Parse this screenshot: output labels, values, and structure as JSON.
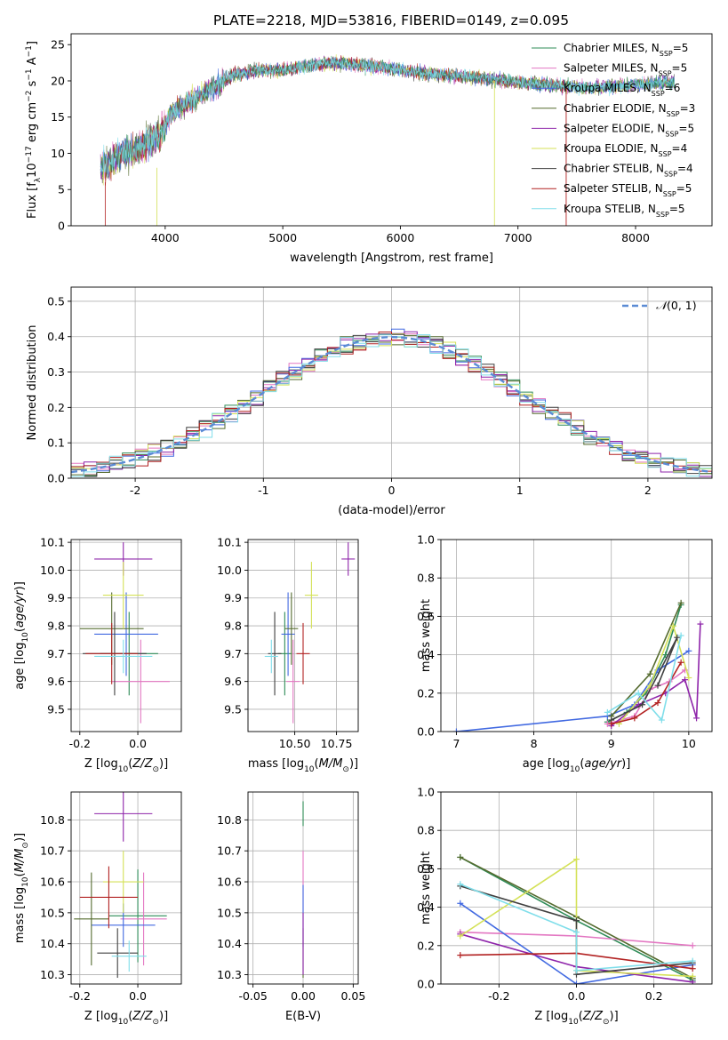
{
  "figure_title": "PLATE=2218, MJD=53816, FIBERID=0149, z=0.095",
  "series": [
    {
      "name": "Chabrier MILES, N",
      "nssp": "=5",
      "color": "#2e8b57"
    },
    {
      "name": "Salpeter MILES, N",
      "nssp": "=5",
      "color": "#e377c2"
    },
    {
      "name": "Kroupa MILES, N",
      "nssp": "=6",
      "color": "#4169e1"
    },
    {
      "name": "Chabrier ELODIE, N",
      "nssp": "=3",
      "color": "#556b2f"
    },
    {
      "name": "Salpeter ELODIE, N",
      "nssp": "=5",
      "color": "#8e24aa"
    },
    {
      "name": "Kroupa ELODIE, N",
      "nssp": "=4",
      "color": "#d4e157"
    },
    {
      "name": "Chabrier STELIB, N",
      "nssp": "=4",
      "color": "#404040"
    },
    {
      "name": "Salpeter STELIB, N",
      "nssp": "=5",
      "color": "#b22222"
    },
    {
      "name": "Kroupa STELIB, N",
      "nssp": "=5",
      "color": "#80deea"
    }
  ],
  "legend_sub": "SSP",
  "chart_data": [
    {
      "id": "spectrum",
      "type": "line",
      "xlabel": "wavelength [Angstrom, rest frame]",
      "ylabel": "Flux [f",
      "ylabel_rest": "10",
      "ylabel_exp": "−17",
      "ylabel_units": " erg cm",
      "xlim": [
        3200,
        8650
      ],
      "ylim": [
        0,
        26.5
      ],
      "xticks": [
        4000,
        5000,
        6000,
        7000,
        8000
      ],
      "yticks": [
        0,
        5,
        10,
        15,
        20,
        25
      ],
      "continuum": [
        [
          3450,
          8
        ],
        [
          3550,
          9
        ],
        [
          3650,
          10
        ],
        [
          3750,
          10.5
        ],
        [
          3850,
          11.5
        ],
        [
          3950,
          12.5
        ],
        [
          4050,
          15.5
        ],
        [
          4200,
          17
        ],
        [
          4400,
          19
        ],
        [
          4600,
          21
        ],
        [
          4800,
          21.5
        ],
        [
          5000,
          21.5
        ],
        [
          5200,
          22
        ],
        [
          5400,
          22.5
        ],
        [
          5600,
          22.3
        ],
        [
          5800,
          22
        ],
        [
          6000,
          21.5
        ],
        [
          6200,
          21
        ],
        [
          6400,
          20.8
        ],
        [
          6600,
          20.5
        ],
        [
          6800,
          20.2
        ],
        [
          7000,
          19.8
        ],
        [
          7200,
          19.5
        ],
        [
          7400,
          19.3
        ],
        [
          7600,
          19
        ],
        [
          7800,
          19.2
        ],
        [
          8000,
          19.5
        ],
        [
          8300,
          19.8
        ]
      ]
    },
    {
      "id": "residuals",
      "type": "histogram",
      "xlabel": "(data-model)/error",
      "ylabel": "Normed distribution",
      "xlim": [
        -2.5,
        2.5
      ],
      "ylim": [
        0,
        0.54
      ],
      "xticks": [
        -2,
        -1,
        0,
        1,
        2
      ],
      "yticks": [
        0.0,
        0.1,
        0.2,
        0.3,
        0.4,
        0.5
      ],
      "reference_label": "(0, 1)",
      "reference_symbol": "𝒩",
      "bin_width": 0.1
    },
    {
      "id": "age_vs_Z",
      "type": "scatter",
      "xlabel": "Z [log",
      "xlabel_sub": "10",
      "xlabel_rest": "(Z/Z",
      "ylabel": "age  [log",
      "ylabel_sub": "10",
      "ylabel_rest": "(age/yr)]",
      "xlim": [
        -0.23,
        0.15
      ],
      "ylim": [
        9.42,
        10.11
      ],
      "xticks": [
        -0.2,
        0.0
      ],
      "yticks": [
        9.5,
        9.6,
        9.7,
        9.8,
        9.9,
        10.0,
        10.1
      ],
      "points": [
        [
          -0.03,
          9.7,
          0.1,
          0.15
        ],
        [
          0.01,
          9.6,
          0.1,
          0.15
        ],
        [
          -0.04,
          9.77,
          0.11,
          0.15
        ],
        [
          -0.09,
          9.79,
          0.11,
          0.13
        ],
        [
          -0.05,
          10.04,
          0.1,
          0.06
        ],
        [
          -0.05,
          9.91,
          0.07,
          0.12
        ],
        [
          -0.08,
          9.7,
          0.11,
          0.15
        ],
        [
          -0.09,
          9.7,
          0.09,
          0.11
        ],
        [
          -0.05,
          9.69,
          0.1,
          0.06
        ]
      ]
    },
    {
      "id": "age_vs_mass",
      "type": "scatter",
      "xlabel": "mass [log",
      "xlabel_sub": "10",
      "xlabel_rest": "(M/M",
      "xlim": [
        10.22,
        10.88
      ],
      "ylim": [
        9.42,
        10.11
      ],
      "xticks": [
        10.5,
        10.75
      ],
      "yticks": [
        9.5,
        9.6,
        9.7,
        9.8,
        9.9,
        10.0,
        10.1
      ],
      "points": [
        [
          10.44,
          9.7,
          0.04,
          0.15
        ],
        [
          10.49,
          9.6,
          0.04,
          0.15
        ],
        [
          10.46,
          9.77,
          0.04,
          0.15
        ],
        [
          10.48,
          9.79,
          0.04,
          0.13
        ],
        [
          10.82,
          10.04,
          0.04,
          0.06
        ],
        [
          10.6,
          9.91,
          0.04,
          0.12
        ],
        [
          10.38,
          9.7,
          0.04,
          0.15
        ],
        [
          10.55,
          9.7,
          0.04,
          0.11
        ],
        [
          10.36,
          9.69,
          0.04,
          0.06
        ]
      ]
    },
    {
      "id": "weight_vs_age",
      "type": "line",
      "xlabel": "age  [log",
      "xlabel_sub": "10",
      "xlabel_rest": "(age/yr)]",
      "ylabel": "mass weight",
      "xlim": [
        6.8,
        10.3
      ],
      "ylim": [
        0,
        1
      ],
      "xticks": [
        7,
        8,
        9,
        10
      ],
      "yticks": [
        0.0,
        0.2,
        0.4,
        0.6,
        0.8,
        1.0
      ],
      "lines": [
        [
          [
            8.95,
            0.05
          ],
          [
            9.2,
            0.1
          ],
          [
            9.45,
            0.2
          ],
          [
            9.7,
            0.4
          ],
          [
            9.9,
            0.66
          ]
        ],
        [
          [
            8.95,
            0.04
          ],
          [
            9.3,
            0.08
          ],
          [
            9.5,
            0.22
          ],
          [
            9.75,
            0.26
          ],
          [
            9.95,
            0.32
          ]
        ],
        [
          [
            7.0,
            0.0
          ],
          [
            8.95,
            0.08
          ],
          [
            9.3,
            0.14
          ],
          [
            9.6,
            0.32
          ],
          [
            10.0,
            0.42
          ]
        ],
        [
          [
            9.0,
            0.08
          ],
          [
            9.5,
            0.3
          ],
          [
            9.9,
            0.67
          ]
        ],
        [
          [
            9.0,
            0.03
          ],
          [
            9.35,
            0.14
          ],
          [
            9.7,
            0.2
          ],
          [
            9.95,
            0.27
          ],
          [
            10.1,
            0.07
          ],
          [
            10.15,
            0.56
          ]
        ],
        [
          [
            9.1,
            0.04
          ],
          [
            9.5,
            0.24
          ],
          [
            9.8,
            0.55
          ],
          [
            10.0,
            0.28
          ]
        ],
        [
          [
            9.0,
            0.06
          ],
          [
            9.4,
            0.14
          ],
          [
            9.85,
            0.49
          ],
          [
            9.6,
            0.24
          ]
        ],
        [
          [
            9.0,
            0.04
          ],
          [
            9.3,
            0.07
          ],
          [
            9.6,
            0.15
          ],
          [
            9.9,
            0.36
          ]
        ],
        [
          [
            8.95,
            0.1
          ],
          [
            9.35,
            0.2
          ],
          [
            9.65,
            0.06
          ],
          [
            9.9,
            0.5
          ]
        ]
      ]
    },
    {
      "id": "mass_vs_Z",
      "type": "scatter",
      "xlabel": "Z [log",
      "xlabel_sub": "10",
      "xlabel_rest": "(Z/Z",
      "ylabel": "mass [log",
      "ylabel_sub": "10",
      "ylabel_rest": "(M/M",
      "xlim": [
        -0.23,
        0.15
      ],
      "ylim": [
        10.27,
        10.89
      ],
      "xticks": [
        -0.2,
        0.0
      ],
      "yticks": [
        10.3,
        10.4,
        10.5,
        10.6,
        10.7,
        10.8
      ],
      "points": [
        [
          0.0,
          10.49,
          0.1,
          0.15
        ],
        [
          0.02,
          10.48,
          0.08,
          0.15
        ],
        [
          -0.05,
          10.46,
          0.11,
          0.07
        ],
        [
          -0.16,
          10.48,
          0.06,
          0.15
        ],
        [
          -0.05,
          10.82,
          0.1,
          0.09
        ],
        [
          -0.05,
          10.6,
          0.07,
          0.1
        ],
        [
          -0.07,
          10.37,
          0.07,
          0.08
        ],
        [
          -0.1,
          10.55,
          0.1,
          0.1
        ],
        [
          -0.03,
          10.36,
          0.06,
          0.05
        ]
      ]
    },
    {
      "id": "mass_vs_ebv",
      "type": "scatter",
      "xlabel": "E(B-V)",
      "xlim": [
        -0.055,
        0.055
      ],
      "ylim": [
        10.27,
        10.89
      ],
      "xticks": [
        -0.05,
        0.0,
        0.05
      ],
      "yticks": [
        10.3,
        10.4,
        10.5,
        10.6,
        10.7,
        10.8
      ],
      "points": [
        [
          0,
          10.82,
          0,
          0.04
        ],
        [
          0,
          10.6,
          0,
          0.1
        ],
        [
          0,
          10.49,
          0,
          0.1
        ],
        [
          0,
          10.37,
          0,
          0.08
        ],
        [
          0,
          10.4,
          0,
          0.1
        ]
      ]
    },
    {
      "id": "weight_vs_Z",
      "type": "line",
      "xlabel": "Z [log",
      "xlabel_sub": "10",
      "xlabel_rest": "(Z/Z",
      "ylabel": "mass weight",
      "xlim": [
        -0.35,
        0.35
      ],
      "ylim": [
        0,
        1
      ],
      "xticks": [
        -0.2,
        0.0,
        0.2
      ],
      "yticks": [
        0.0,
        0.2,
        0.4,
        0.6,
        0.8,
        1.0
      ],
      "lines": [
        [
          [
            -0.3,
            0.66
          ],
          [
            0.0,
            0.33
          ],
          [
            0.3,
            0.02
          ]
        ],
        [
          [
            -0.3,
            0.27
          ],
          [
            0.0,
            0.25
          ],
          [
            0.3,
            0.2
          ]
        ],
        [
          [
            -0.3,
            0.42
          ],
          [
            0.0,
            0.0
          ],
          [
            0.3,
            0.1
          ]
        ],
        [
          [
            -0.3,
            0.66
          ],
          [
            0.0,
            0.35
          ],
          [
            0.3,
            0.03
          ]
        ],
        [
          [
            -0.3,
            0.26
          ],
          [
            0.0,
            0.09
          ],
          [
            0.3,
            0.01
          ]
        ],
        [
          [
            -0.3,
            0.25
          ],
          [
            0.0,
            0.65
          ],
          [
            0.0,
            0.07
          ],
          [
            0.3,
            0.04
          ]
        ],
        [
          [
            -0.3,
            0.51
          ],
          [
            0.0,
            0.33
          ],
          [
            0.0,
            0.05
          ],
          [
            0.3,
            0.11
          ]
        ],
        [
          [
            -0.3,
            0.15
          ],
          [
            0.0,
            0.16
          ],
          [
            0.3,
            0.08
          ]
        ],
        [
          [
            -0.3,
            0.52
          ],
          [
            0.0,
            0.27
          ],
          [
            0.0,
            0.07
          ],
          [
            0.3,
            0.12
          ]
        ]
      ]
    }
  ]
}
